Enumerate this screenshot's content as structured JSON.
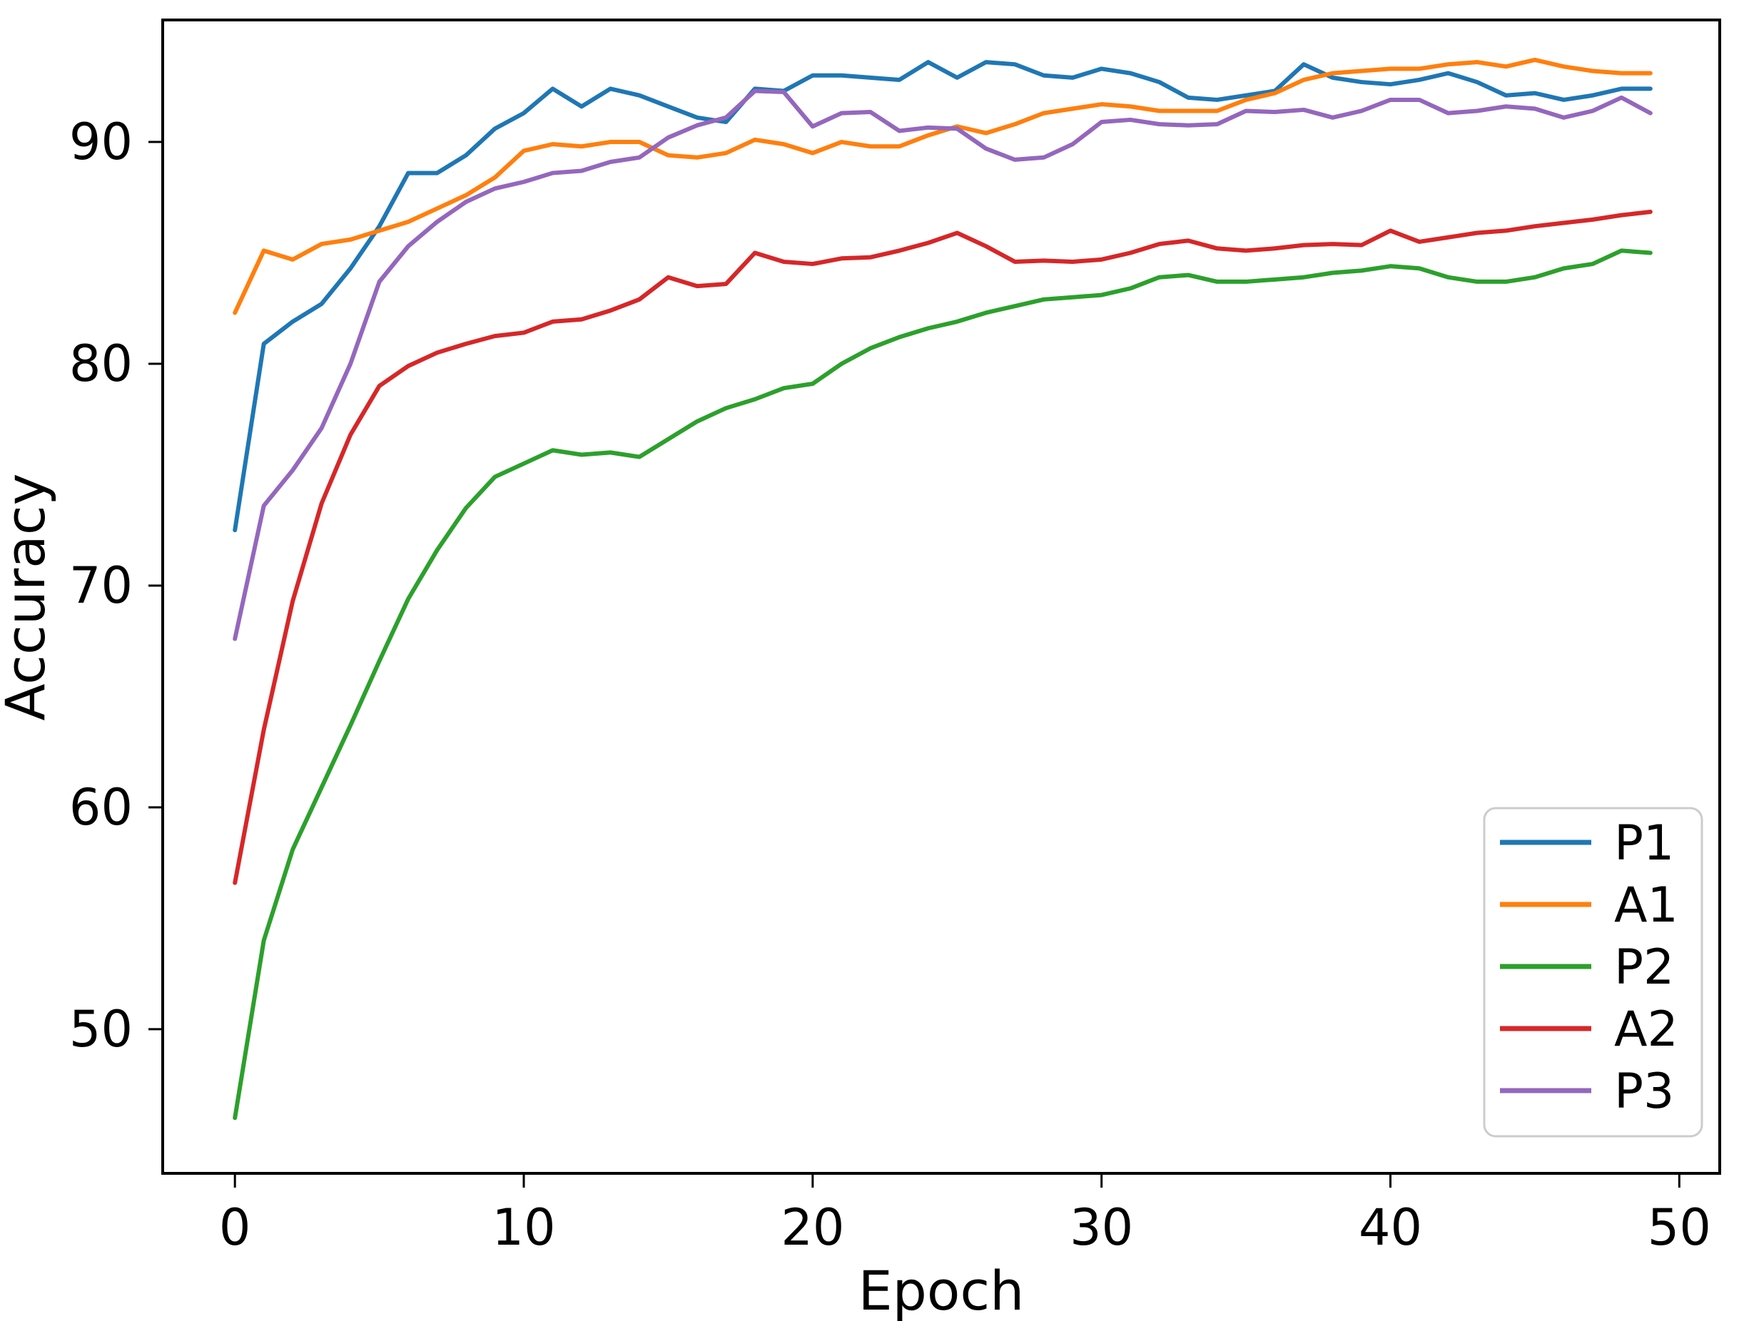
{
  "chart_data": {
    "type": "line",
    "title": "",
    "xlabel": "Epoch",
    "ylabel": "Accuracy",
    "x_ticks": [
      0,
      10,
      20,
      30,
      40,
      50
    ],
    "y_ticks": [
      50,
      60,
      70,
      80,
      90
    ],
    "xlim": [
      -2.5,
      51.4
    ],
    "ylim": [
      43.5,
      95.5
    ],
    "grid": false,
    "legend_position": "lower right",
    "x": [
      0,
      1,
      2,
      3,
      4,
      5,
      6,
      7,
      8,
      9,
      10,
      11,
      12,
      13,
      14,
      15,
      16,
      17,
      18,
      19,
      20,
      21,
      22,
      23,
      24,
      25,
      26,
      27,
      28,
      29,
      30,
      31,
      32,
      33,
      34,
      35,
      36,
      37,
      38,
      39,
      40,
      41,
      42,
      43,
      44,
      45,
      46,
      47,
      48,
      49
    ],
    "series": [
      {
        "name": "P1",
        "color": "#1f77b4",
        "values": [
          72.5,
          80.9,
          81.9,
          82.7,
          84.3,
          86.2,
          88.6,
          88.6,
          89.4,
          90.6,
          91.3,
          92.4,
          91.6,
          92.4,
          92.1,
          91.6,
          91.1,
          90.9,
          92.4,
          92.3,
          93.0,
          93.0,
          92.9,
          92.8,
          93.6,
          92.9,
          93.6,
          93.5,
          93.0,
          92.9,
          93.3,
          93.1,
          92.7,
          92.0,
          91.9,
          92.1,
          92.3,
          93.5,
          92.9,
          92.7,
          92.6,
          92.8,
          93.1,
          92.7,
          92.1,
          92.2,
          91.9,
          92.1,
          92.4,
          92.4
        ]
      },
      {
        "name": "A1",
        "color": "#ff7f0e",
        "values": [
          82.3,
          85.1,
          84.7,
          85.4,
          85.6,
          86.0,
          86.4,
          87.0,
          87.6,
          88.4,
          89.6,
          89.9,
          89.8,
          90.0,
          90.0,
          89.4,
          89.3,
          89.5,
          90.1,
          89.9,
          89.5,
          90.0,
          89.8,
          89.8,
          90.3,
          90.7,
          90.4,
          90.8,
          91.3,
          91.5,
          91.7,
          91.6,
          91.4,
          91.4,
          91.4,
          91.9,
          92.2,
          92.8,
          93.1,
          93.2,
          93.3,
          93.3,
          93.5,
          93.6,
          93.4,
          93.7,
          93.4,
          93.2,
          93.1,
          93.1
        ]
      },
      {
        "name": "P2",
        "color": "#2ca02c",
        "values": [
          46.0,
          54.0,
          58.1,
          60.9,
          63.7,
          66.6,
          69.4,
          71.6,
          73.5,
          74.9,
          75.5,
          76.1,
          75.9,
          76.0,
          75.8,
          76.6,
          77.4,
          78.0,
          78.4,
          78.9,
          79.1,
          80.0,
          80.7,
          81.2,
          81.6,
          81.9,
          82.3,
          82.6,
          82.9,
          83.0,
          83.1,
          83.4,
          83.9,
          84.0,
          83.7,
          83.7,
          83.8,
          83.9,
          84.1,
          84.2,
          84.4,
          84.3,
          83.9,
          83.7,
          83.7,
          83.9,
          84.3,
          84.5,
          85.1,
          85.0
        ]
      },
      {
        "name": "A2",
        "color": "#d62728",
        "values": [
          56.6,
          63.5,
          69.3,
          73.7,
          76.8,
          79.0,
          79.9,
          80.5,
          80.9,
          81.25,
          81.4,
          81.9,
          82.0,
          82.4,
          82.9,
          83.9,
          83.5,
          83.6,
          85.0,
          84.6,
          84.5,
          84.75,
          84.8,
          85.1,
          85.45,
          85.9,
          85.3,
          84.6,
          84.65,
          84.6,
          84.7,
          85.0,
          85.4,
          85.55,
          85.2,
          85.1,
          85.2,
          85.35,
          85.4,
          85.35,
          86.0,
          85.5,
          85.7,
          85.9,
          86.0,
          86.2,
          86.35,
          86.5,
          86.7,
          86.85
        ]
      },
      {
        "name": "P3",
        "color": "#9467bd",
        "values": [
          67.6,
          73.6,
          75.2,
          77.1,
          80.0,
          83.7,
          85.3,
          86.4,
          87.3,
          87.9,
          88.2,
          88.6,
          88.7,
          89.1,
          89.3,
          90.2,
          90.75,
          91.1,
          92.3,
          92.25,
          90.7,
          91.3,
          91.35,
          90.5,
          90.65,
          90.6,
          89.7,
          89.2,
          89.3,
          89.9,
          90.9,
          91.0,
          90.8,
          90.75,
          90.8,
          91.4,
          91.35,
          91.45,
          91.1,
          91.4,
          91.9,
          91.9,
          91.3,
          91.4,
          91.6,
          91.5,
          91.1,
          91.4,
          92.0,
          91.3
        ]
      }
    ]
  }
}
